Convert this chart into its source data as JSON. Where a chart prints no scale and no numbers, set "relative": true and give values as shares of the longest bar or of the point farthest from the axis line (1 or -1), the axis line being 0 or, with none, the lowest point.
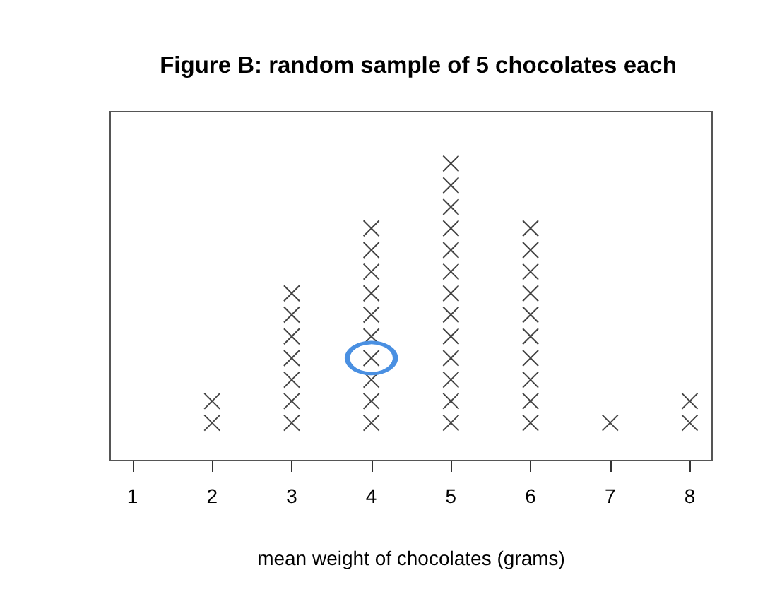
{
  "chart_data": {
    "type": "scatter",
    "title": "Figure B: random sample of 5 chocolates each",
    "xlabel": "mean weight of chocolates (grams)",
    "xlim": [
      0.72,
      8.28
    ],
    "xticks": [
      1,
      2,
      3,
      4,
      5,
      6,
      7,
      8
    ],
    "relative": true,
    "marker": "cross",
    "series": [
      {
        "color": "#444444",
        "x": [
          2,
          2,
          3,
          3,
          3,
          3,
          3,
          3,
          3,
          4,
          4,
          4,
          4,
          4,
          4,
          4,
          4,
          4,
          4,
          5,
          5,
          5,
          5,
          5,
          5,
          5,
          5,
          5,
          5,
          5,
          5,
          5,
          6,
          6,
          6,
          6,
          6,
          6,
          6,
          6,
          6,
          6,
          7,
          8,
          8
        ],
        "values": [
          0.127,
          0.2,
          0.127,
          0.2,
          0.272,
          0.345,
          0.418,
          0.491,
          0.563,
          0.127,
          0.2,
          0.272,
          0.345,
          0.418,
          0.491,
          0.563,
          0.636,
          0.709,
          0.782,
          0.127,
          0.2,
          0.272,
          0.345,
          0.418,
          0.491,
          0.563,
          0.636,
          0.709,
          0.782,
          0.854,
          0.927,
          1,
          0.127,
          0.2,
          0.272,
          0.345,
          0.418,
          0.491,
          0.563,
          0.636,
          0.709,
          0.782,
          0.127,
          0.127,
          0.2
        ]
      },
      {
        "color": "#4a90e2",
        "marker": "circle",
        "x": [
          4
        ],
        "values": [
          0.345
        ]
      }
    ]
  }
}
